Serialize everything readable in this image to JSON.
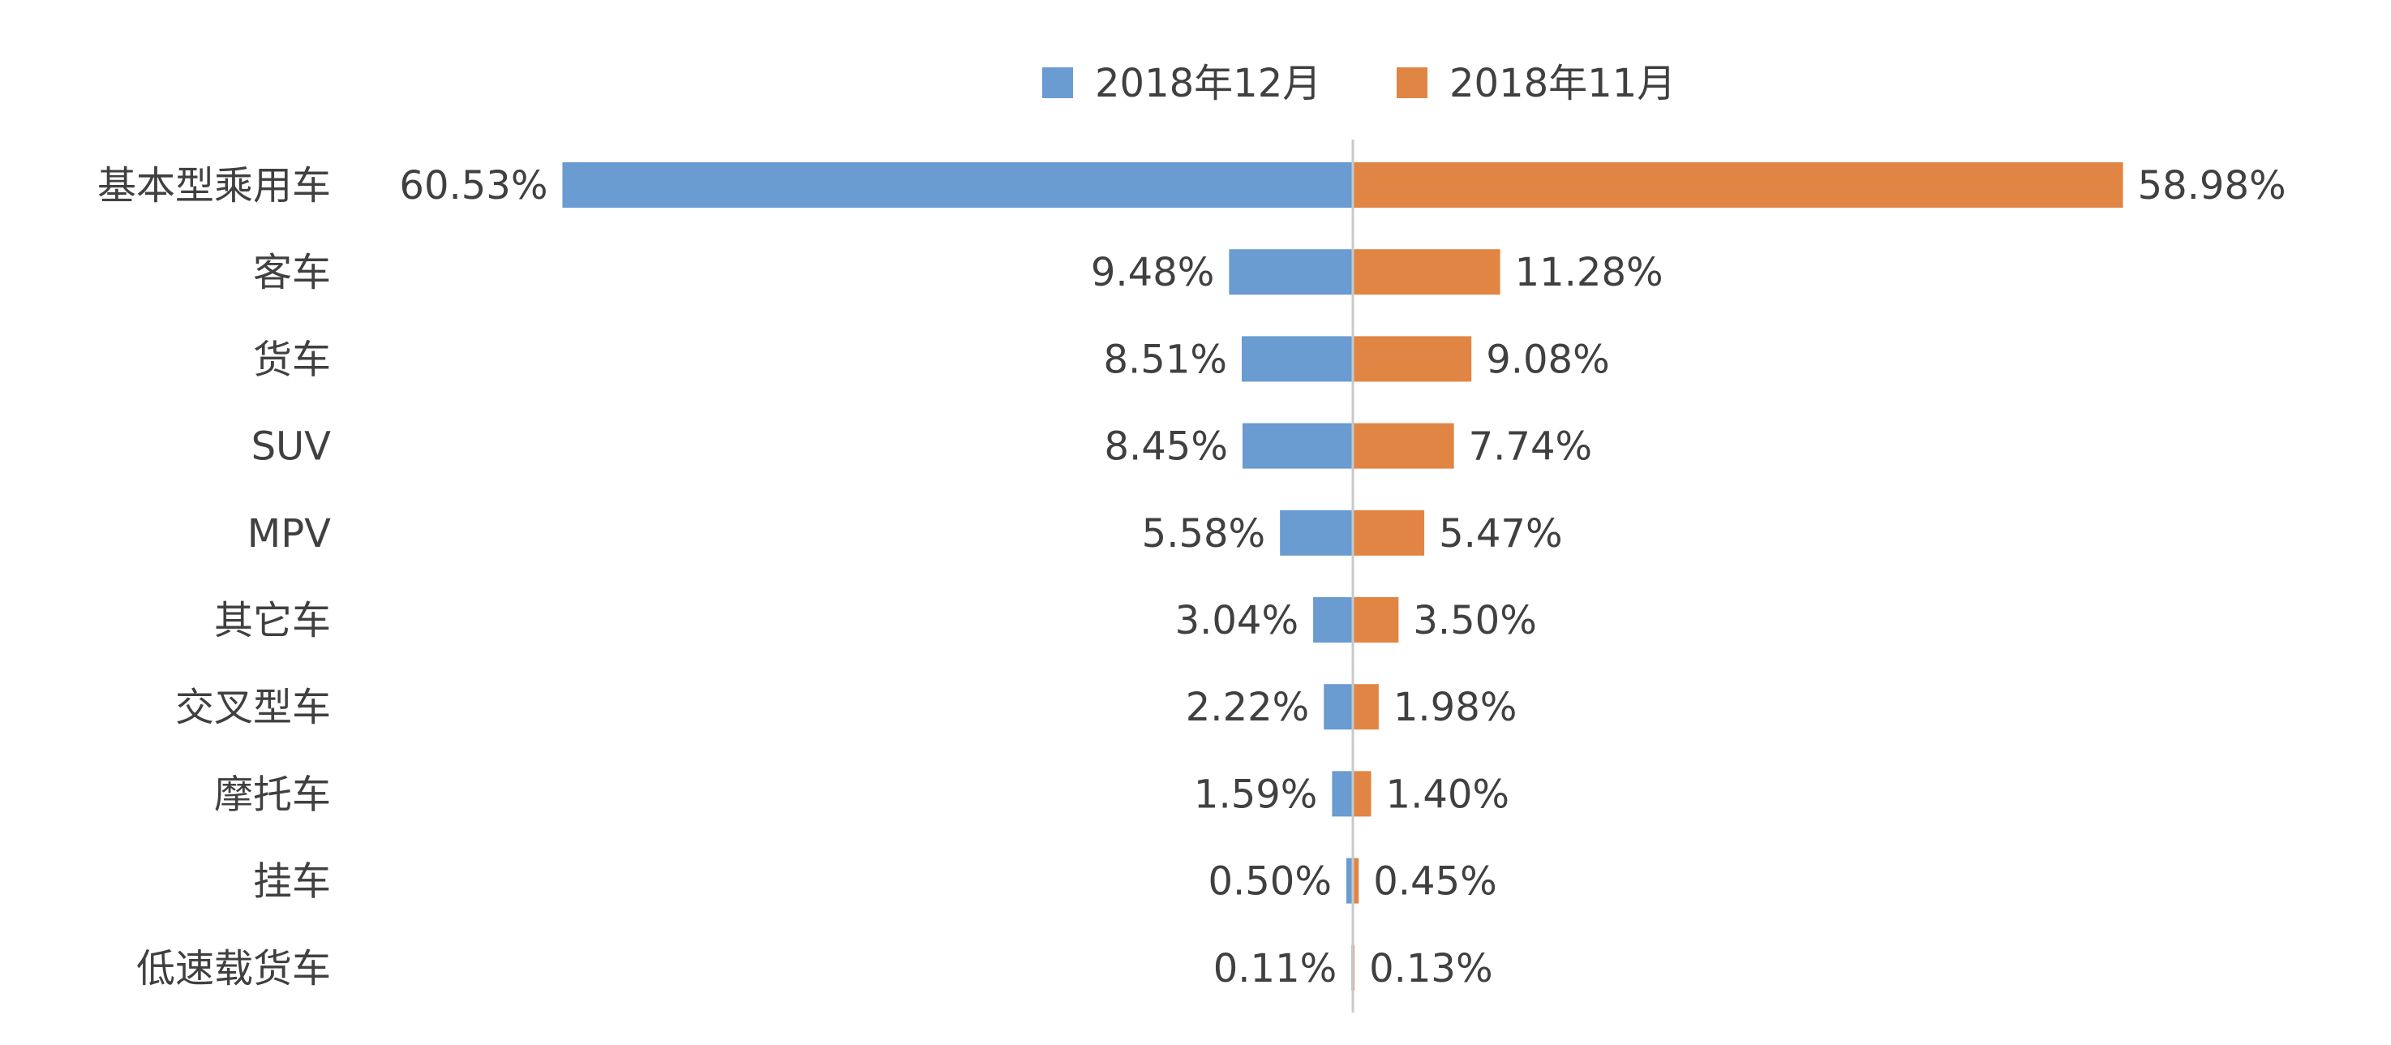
{
  "chart_data": {
    "type": "bar",
    "orientation": "horizontal-diverging",
    "title": "",
    "categories": [
      "基本型乘用车",
      "客车",
      "货车",
      "SUV",
      "MPV",
      "其它车",
      "交叉型车",
      "摩托车",
      "挂车",
      "低速载货车"
    ],
    "series": [
      {
        "name": "2018年12月",
        "color": "#6A9BD1",
        "values": [
          60.53,
          9.48,
          8.51,
          8.45,
          5.58,
          3.04,
          2.22,
          1.59,
          0.5,
          0.11
        ],
        "labels": [
          "60.53%",
          "9.48%",
          "8.51%",
          "8.45%",
          "5.58%",
          "3.04%",
          "2.22%",
          "1.59%",
          "0.50%",
          "0.11%"
        ],
        "direction": "left"
      },
      {
        "name": "2018年11月",
        "color": "#E08544",
        "values": [
          58.98,
          11.28,
          9.08,
          7.74,
          5.47,
          3.5,
          1.98,
          1.4,
          0.45,
          0.13
        ],
        "labels": [
          "58.98%",
          "11.28%",
          "9.08%",
          "7.74%",
          "5.47%",
          "3.50%",
          "1.98%",
          "1.40%",
          "0.45%",
          "0.13%"
        ],
        "direction": "right"
      }
    ],
    "unit": "%",
    "legend_position": "top-center",
    "grid": false,
    "text_color": "#404040",
    "axis_color": "#C8C8C8"
  }
}
